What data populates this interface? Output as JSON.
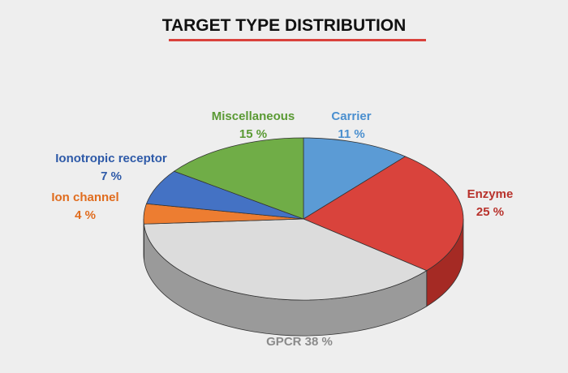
{
  "chart_data": {
    "type": "pie",
    "title": "TARGET TYPE DISTRIBUTION",
    "slices": [
      {
        "name": "Carrier",
        "value": 11,
        "label": "11 %",
        "color": "#5b9bd5",
        "side_color": "#3e78ad",
        "label_color": "#4a8fcf"
      },
      {
        "name": "Enzyme",
        "value": 25,
        "label": "25 %",
        "color": "#d9433c",
        "side_color": "#a52a24",
        "label_color": "#b8322c"
      },
      {
        "name": "GPCR",
        "value": 38,
        "label": "GPCR 38 %",
        "color": "#dcdcdc",
        "side_color": "#9a9a9a",
        "label_color": "#8a8a8a"
      },
      {
        "name": "Ion channel",
        "value": 4,
        "label": "4 %",
        "color": "#ed7d31",
        "side_color": "#b85f22",
        "label_color": "#e06c1e"
      },
      {
        "name": "Ionotropic receptor",
        "value": 7,
        "label": "7 %",
        "color": "#4472c4",
        "side_color": "#2f5597",
        "label_color": "#2e5aa8"
      },
      {
        "name": "Miscellaneous",
        "value": 15,
        "label": "15 %",
        "color": "#70ad47",
        "side_color": "#4f8132",
        "label_color": "#5a9a34"
      }
    ],
    "style": "3d",
    "legend": "none"
  }
}
